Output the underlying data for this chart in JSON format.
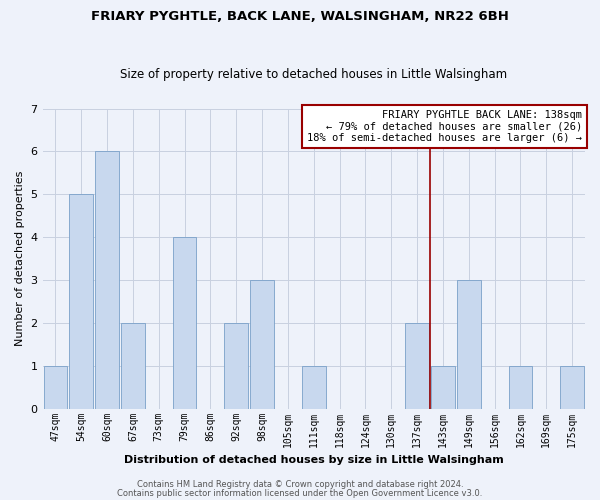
{
  "title": "FRIARY PYGHTLE, BACK LANE, WALSINGHAM, NR22 6BH",
  "subtitle": "Size of property relative to detached houses in Little Walsingham",
  "xlabel": "Distribution of detached houses by size in Little Walsingham",
  "ylabel": "Number of detached properties",
  "bar_labels": [
    "47sqm",
    "54sqm",
    "60sqm",
    "67sqm",
    "73sqm",
    "79sqm",
    "86sqm",
    "92sqm",
    "98sqm",
    "105sqm",
    "111sqm",
    "118sqm",
    "124sqm",
    "130sqm",
    "137sqm",
    "143sqm",
    "149sqm",
    "156sqm",
    "162sqm",
    "169sqm",
    "175sqm"
  ],
  "bar_values": [
    1,
    5,
    6,
    2,
    0,
    4,
    0,
    2,
    3,
    0,
    1,
    0,
    0,
    0,
    2,
    1,
    3,
    0,
    1,
    0,
    1
  ],
  "bar_color": "#c8d8ee",
  "bar_edge_color": "#7aa0c8",
  "grid_color": "#c8d0e0",
  "background_color": "#eef2fa",
  "ylim": [
    0,
    7
  ],
  "yticks": [
    0,
    1,
    2,
    3,
    4,
    5,
    6,
    7
  ],
  "reference_line_x": 14.5,
  "reference_line_color": "#990000",
  "annotation_title": "FRIARY PYGHTLE BACK LANE: 138sqm",
  "annotation_line1": "← 79% of detached houses are smaller (26)",
  "annotation_line2": "18% of semi-detached houses are larger (6) →",
  "annotation_box_color": "#ffffff",
  "annotation_border_color": "#990000",
  "footnote1": "Contains HM Land Registry data © Crown copyright and database right 2024.",
  "footnote2": "Contains public sector information licensed under the Open Government Licence v3.0."
}
